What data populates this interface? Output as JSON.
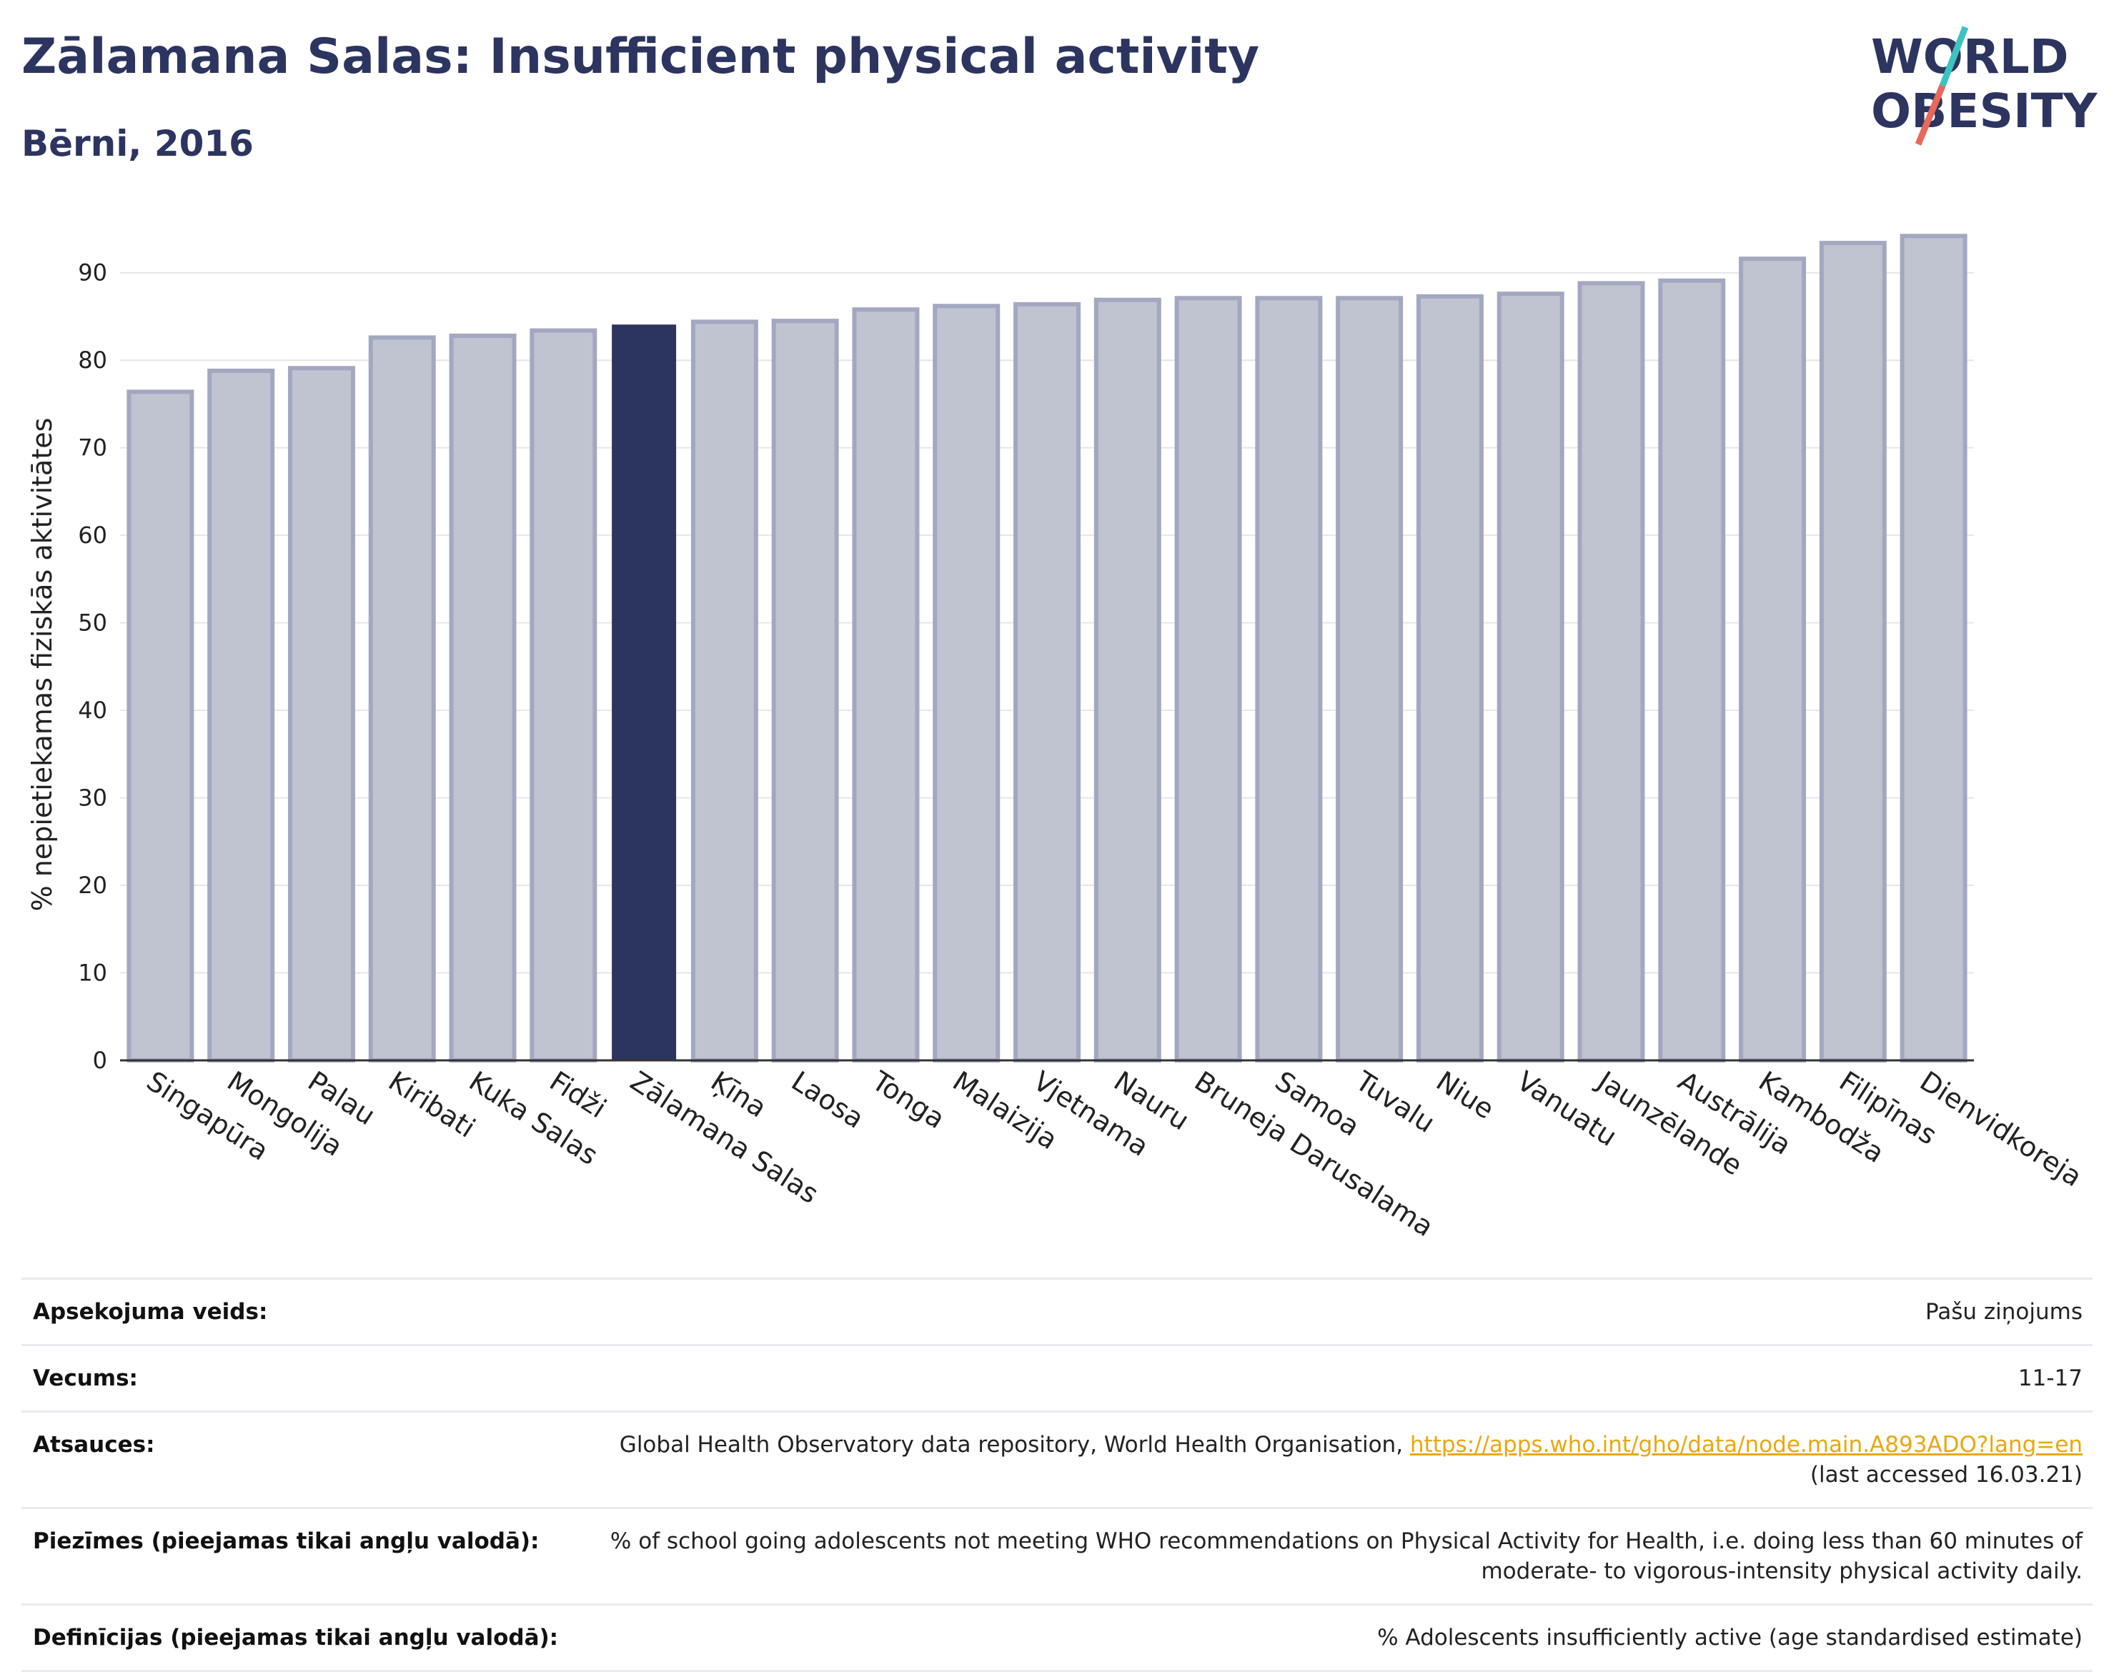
{
  "header": {
    "title": "Zālamana Salas: Insufficient physical activity",
    "subtitle": "Bērni, 2016"
  },
  "logo": {
    "line1": "WORLD",
    "line2": "OBESITY",
    "colors": {
      "text": "#2c3560",
      "slash_top": "#3cc3c0",
      "slash_bottom": "#e8685a"
    }
  },
  "colors": {
    "bar": "#c0c3d0",
    "bar_border": "#a2a8c0",
    "highlight": "#2c3560",
    "grid": "#e6e6ea",
    "axis": "#333333"
  },
  "chart_data": {
    "type": "bar",
    "title": "Zālamana Salas: Insufficient physical activity",
    "subtitle": "Bērni, 2016",
    "ylabel": "% nepietiekamas fiziskās aktivitātes",
    "xlabel": "",
    "ylim": [
      0,
      97
    ],
    "yticks": [
      0,
      10,
      20,
      30,
      40,
      50,
      60,
      70,
      80,
      90
    ],
    "grid": true,
    "highlight": "Zālamana Salas",
    "categories": [
      "Singapūra",
      "Mongolija",
      "Palau",
      "Kiribati",
      "Kuka Salas",
      "Fidži",
      "Zālamana Salas",
      "Ķīna",
      "Laosa",
      "Tonga",
      "Malaizija",
      "Vjetnama",
      "Nauru",
      "Bruneja Darusalama",
      "Samoa",
      "Tuvalu",
      "Niue",
      "Vanuatu",
      "Jaunzēlande",
      "Austrālija",
      "Kambodža",
      "Filipīnas",
      "Dienvidkoreja"
    ],
    "values": [
      76.4,
      78.8,
      79.1,
      82.6,
      82.8,
      83.4,
      84.0,
      84.4,
      84.5,
      85.8,
      86.2,
      86.4,
      86.9,
      87.1,
      87.1,
      87.1,
      87.3,
      87.6,
      88.8,
      89.1,
      91.6,
      93.4,
      94.2
    ]
  },
  "info": {
    "rows": [
      {
        "key": "Apsekojuma veids:",
        "value": "Pašu ziņojums"
      },
      {
        "key": "Vecums:",
        "value": "11-17"
      },
      {
        "key": "Atsauces:",
        "value": "Global Health Observatory data repository, World Health Organisation, ",
        "link": "https://apps.who.int/gho/data/node.main.A893ADO?lang=en",
        "value2": "(last accessed 16.03.21)"
      },
      {
        "key": "Piezīmes (pieejamas tikai angļu valodā):",
        "value": "% of school going adolescents not meeting WHO recommendations on Physical Activity for Health, i.e. doing less than 60 minutes of moderate- to vigorous-intensity physical activity daily."
      },
      {
        "key": "Definīcijas (pieejamas tikai angļu valodā):",
        "value": "% Adolescents insufficiently active (age standardised estimate)"
      }
    ]
  }
}
